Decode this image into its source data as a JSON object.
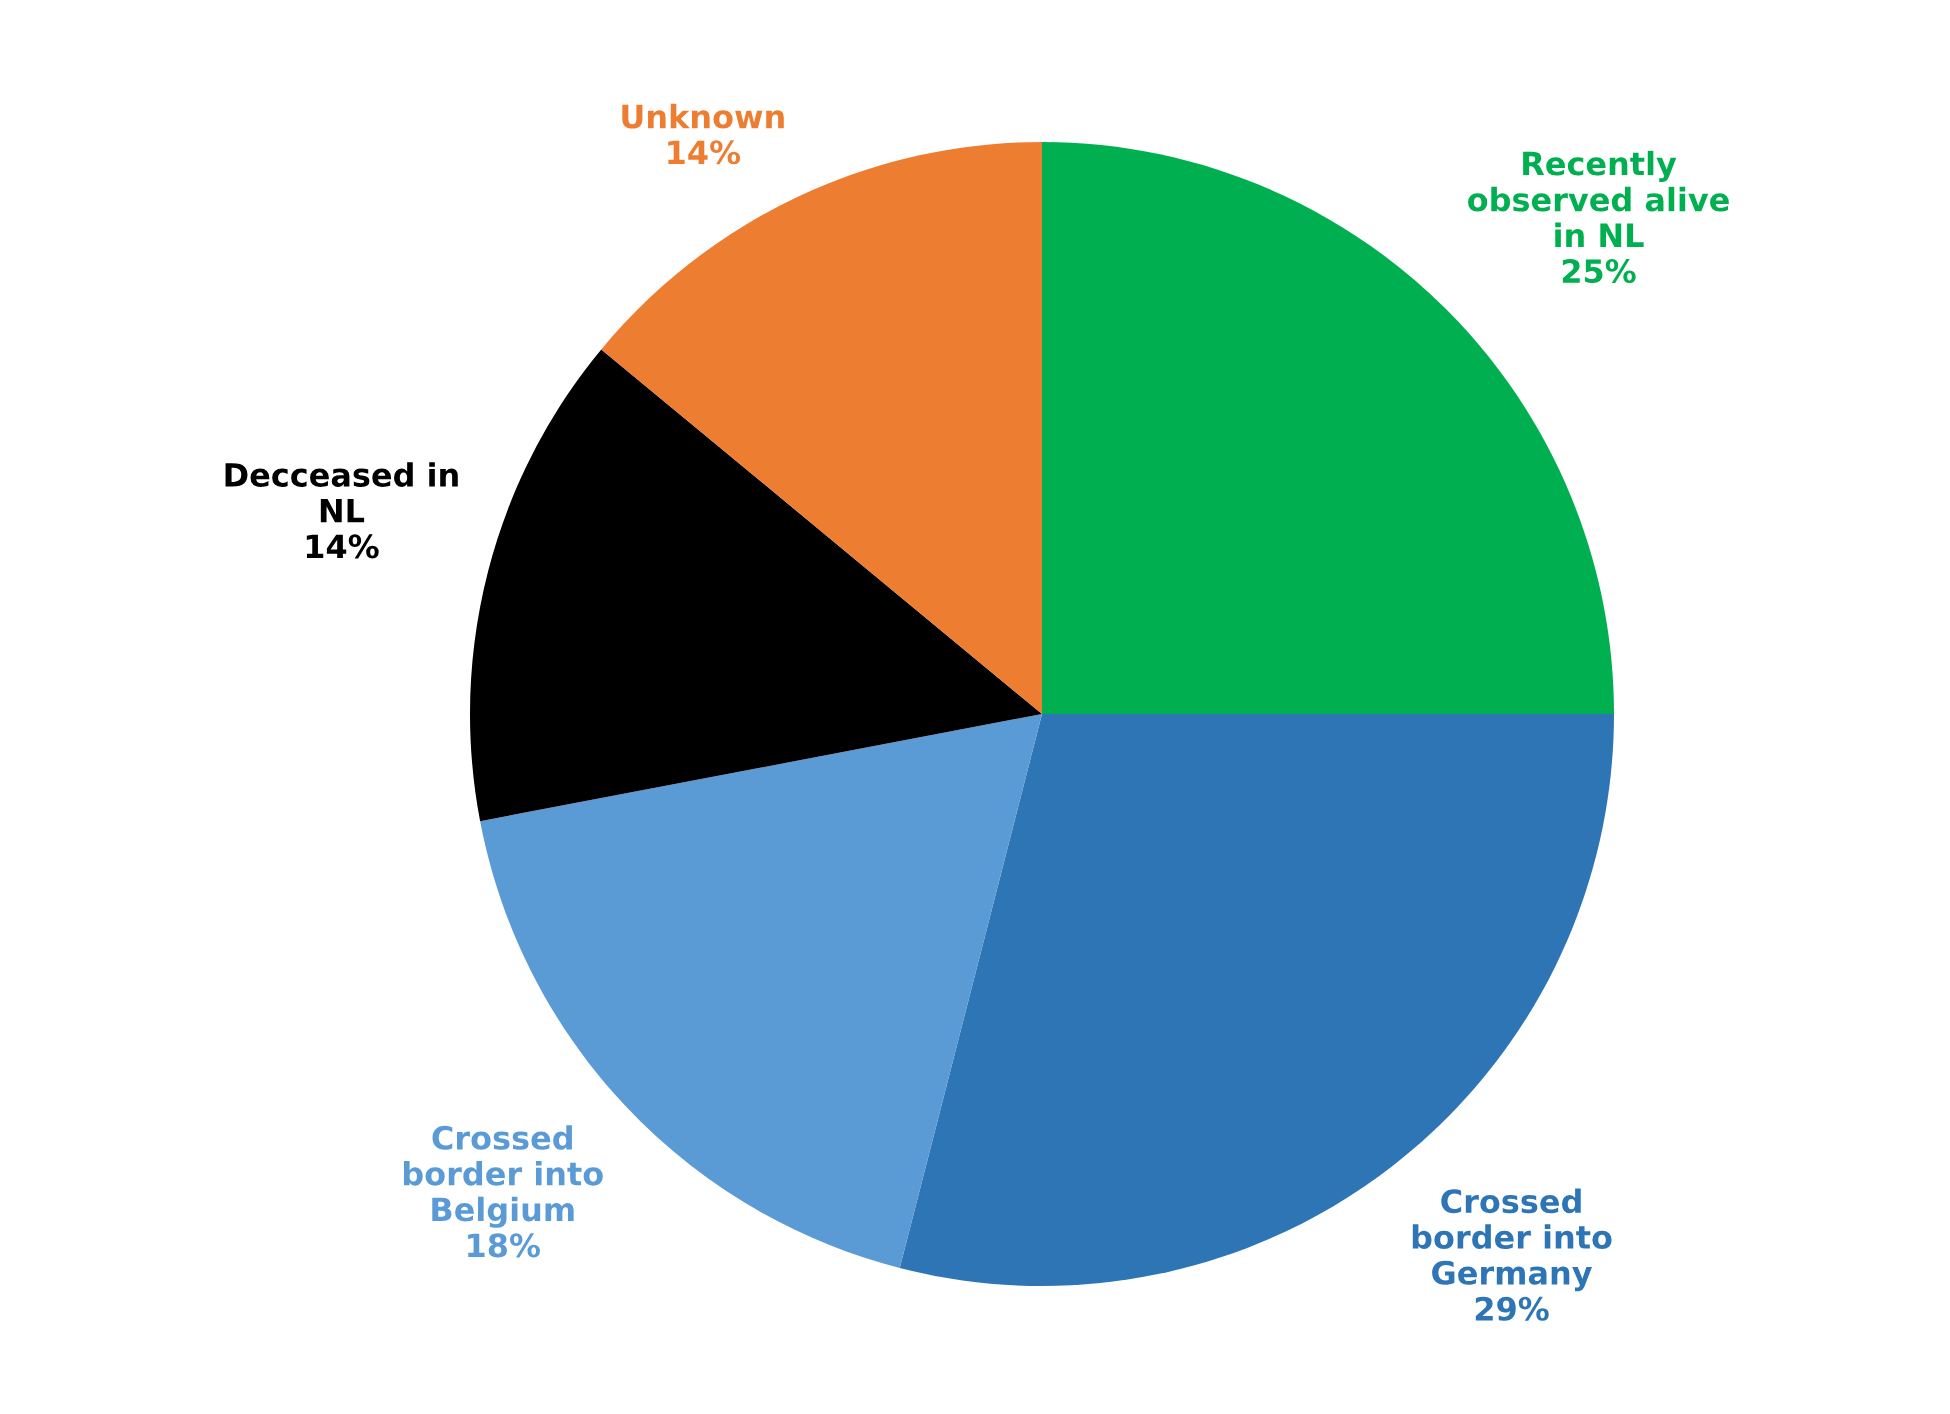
{
  "chart_data": {
    "type": "pie",
    "categories": [
      "Recently\nobserved alive\nin NL",
      "Crossed\nborder into\nGermany",
      "Crossed\nborder into\nBelgium",
      "Decceased in\nNL",
      "Unknown"
    ],
    "values": [
      25,
      29,
      18,
      14,
      14
    ],
    "value_labels": [
      "25%",
      "29%",
      "18%",
      "14%",
      "14%"
    ],
    "colors": [
      "#00b050",
      "#2e75b6",
      "#5b9bd5",
      "#000000",
      "#ed7d31"
    ]
  }
}
